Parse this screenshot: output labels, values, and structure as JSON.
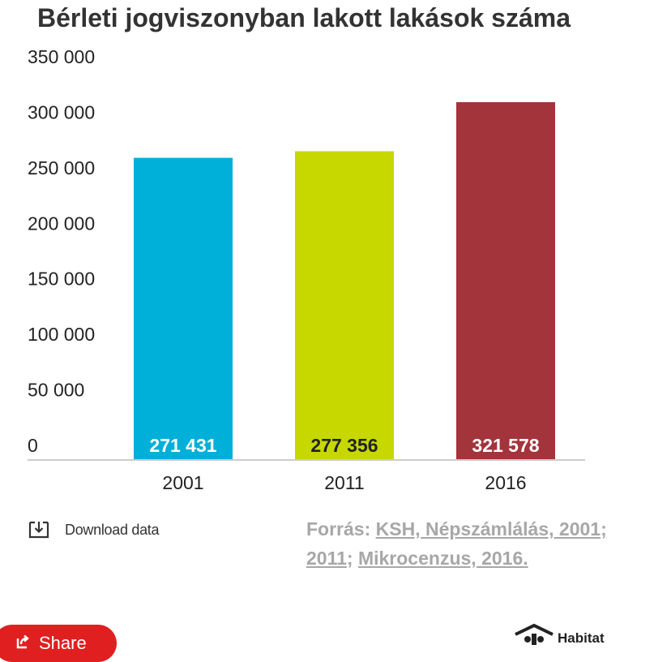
{
  "title": "Bérleti jogviszonyban lakott lakások száma",
  "chart_data": {
    "type": "bar",
    "title": "Bérleti jogviszonyban lakott lakások száma",
    "categories": [
      "2001",
      "2011",
      "2016"
    ],
    "values": [
      271431,
      277356,
      321578
    ],
    "value_labels": [
      "271 431",
      "277 356",
      "321 578"
    ],
    "bar_colors": [
      "#00b0d8",
      "#c6d800",
      "#a3343b"
    ],
    "value_label_colors": [
      "#ffffff",
      "#222222",
      "#ffffff"
    ],
    "ylim": [
      0,
      350000
    ],
    "yticks": [
      0,
      50000,
      100000,
      150000,
      200000,
      250000,
      300000,
      350000
    ],
    "ytick_labels": [
      "0",
      "50 000",
      "100 000",
      "150 000",
      "200 000",
      "250 000",
      "300 000",
      "350 000"
    ],
    "xlabel": "",
    "ylabel": "",
    "grid": false,
    "legend": "none"
  },
  "footer": {
    "download_label": "Download data",
    "download_icon": "download-icon",
    "source_prefix": "Forrás: ",
    "source_link1": "KSH, Népszámlálás, 2001;",
    "source_link2": "2011",
    "source_sep": "; ",
    "source_link3": "Mikrocenzus, 2016."
  },
  "share": {
    "label": "Share",
    "icon": "share-icon",
    "color": "#e02020"
  },
  "logo": {
    "text": "Habitat"
  }
}
